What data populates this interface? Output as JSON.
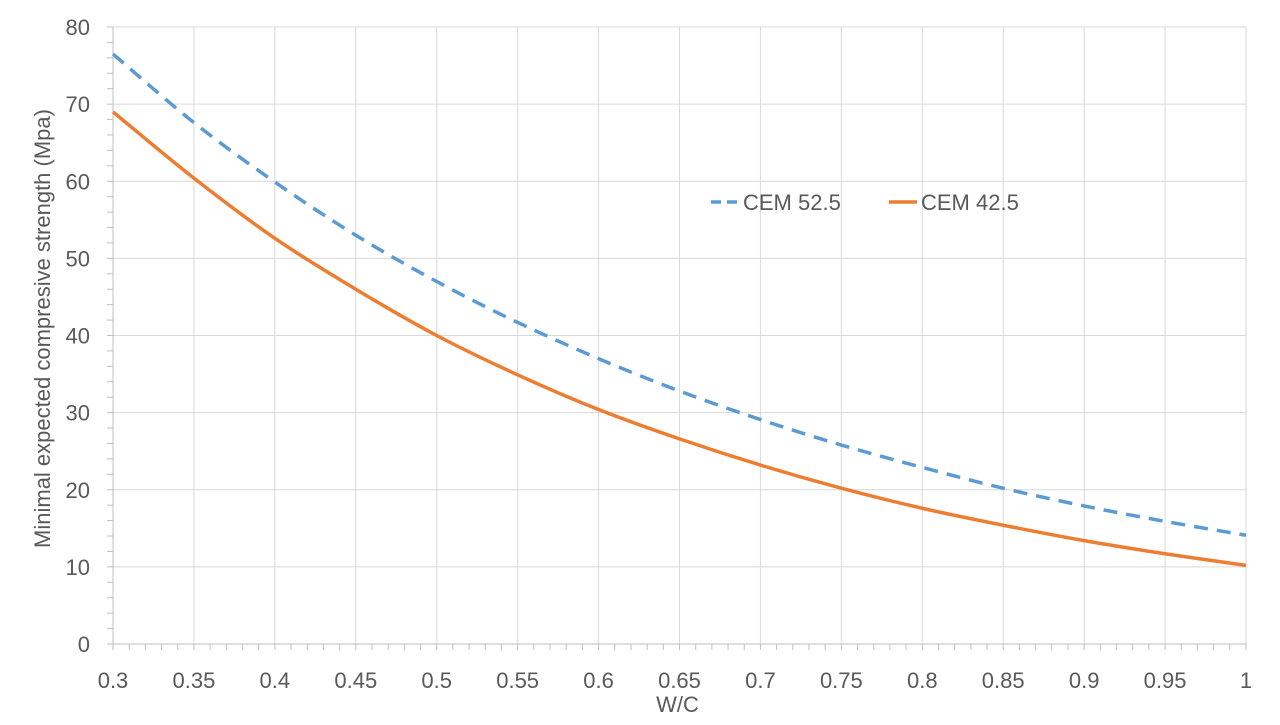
{
  "chart_data": {
    "type": "line",
    "title": "",
    "xlabel": "W/C",
    "ylabel": "Minimal expected compresive strength (Mpa)",
    "xlim": [
      0.3,
      1
    ],
    "ylim": [
      0,
      80
    ],
    "x_ticks": [
      "0.3",
      "0.35",
      "0.4",
      "0.45",
      "0.5",
      "0.55",
      "0.6",
      "0.65",
      "0.7",
      "0.75",
      "0.8",
      "0.85",
      "0.9",
      "0.95",
      "1"
    ],
    "y_ticks": [
      "0",
      "10",
      "20",
      "30",
      "40",
      "50",
      "60",
      "70",
      "80"
    ],
    "grid": true,
    "legend_position": "upper-center-right",
    "series": [
      {
        "name": "CEM 52.5",
        "style": "dashed",
        "color": "#5B9BD5",
        "x": [
          0.3,
          0.35,
          0.4,
          0.45,
          0.5,
          0.55,
          0.6,
          0.65,
          0.7,
          0.75,
          0.8,
          0.85,
          0.9,
          0.95,
          1.0
        ],
        "y": [
          76.5,
          67.6,
          59.9,
          53.0,
          47.0,
          41.7,
          37.0,
          32.8,
          29.1,
          25.8,
          22.9,
          20.2,
          17.9,
          15.9,
          14.1
        ]
      },
      {
        "name": "CEM 42.5",
        "style": "solid",
        "color": "#ED7D31",
        "x": [
          0.3,
          0.35,
          0.4,
          0.45,
          0.5,
          0.55,
          0.6,
          0.65,
          0.7,
          0.75,
          0.8,
          0.85,
          0.9,
          0.95,
          1.0
        ],
        "y": [
          69.0,
          60.4,
          52.6,
          46.0,
          40.0,
          34.9,
          30.4,
          26.6,
          23.2,
          20.2,
          17.6,
          15.4,
          13.4,
          11.7,
          10.2
        ]
      }
    ]
  }
}
